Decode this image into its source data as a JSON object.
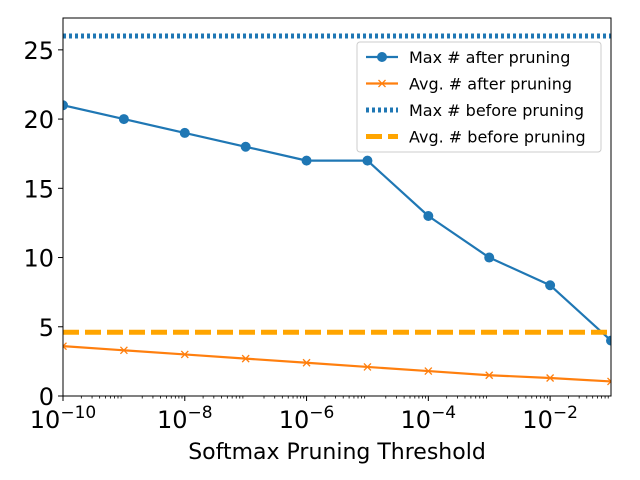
{
  "chart_data": {
    "type": "line",
    "title": "",
    "xlabel": "Softmax Pruning Threshold",
    "ylabel": "",
    "xscale": "log",
    "xlim": [
      1e-10,
      0.1
    ],
    "ylim": [
      0,
      27.3
    ],
    "x": [
      1e-10,
      1e-09,
      1e-08,
      1e-07,
      1e-06,
      1e-05,
      0.0001,
      0.001,
      0.01,
      0.1
    ],
    "xticks": [
      {
        "value": 1e-10,
        "base": "10",
        "exp": "−10"
      },
      {
        "value": 1e-08,
        "base": "10",
        "exp": "−8"
      },
      {
        "value": 1e-06,
        "base": "10",
        "exp": "−6"
      },
      {
        "value": 0.0001,
        "base": "10",
        "exp": "−4"
      },
      {
        "value": 0.01,
        "base": "10",
        "exp": "−2"
      }
    ],
    "yticks": [
      0,
      5,
      10,
      15,
      20,
      25
    ],
    "grid": false,
    "legend_position": "top-right",
    "series": [
      {
        "name": "Max # after pruning",
        "color": "#1f77b4",
        "style": "solid",
        "marker": "circle",
        "values": [
          21,
          20,
          19,
          18,
          17,
          17,
          13,
          10,
          8,
          4
        ]
      },
      {
        "name": "Avg. # after pruning",
        "color": "#ff7f0e",
        "style": "solid",
        "marker": "x",
        "values": [
          3.6,
          3.3,
          3.0,
          2.7,
          2.4,
          2.1,
          1.8,
          1.5,
          1.3,
          1.05
        ]
      },
      {
        "name": "Max # before pruning",
        "color": "#1f77b4",
        "style": "dotted",
        "marker": "none",
        "constant": 26
      },
      {
        "name": "Avg. # before pruning",
        "color": "#ffa500",
        "style": "dashed",
        "marker": "none",
        "constant": 4.6
      }
    ]
  }
}
